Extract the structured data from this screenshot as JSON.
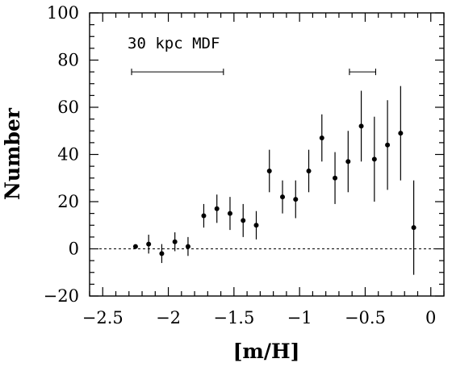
{
  "chart_data": {
    "type": "scatter",
    "xlabel": "[m/H]",
    "ylabel": "Number",
    "xlim": [
      -2.6,
      0.1
    ],
    "ylim": [
      -20,
      100
    ],
    "grid": false,
    "x_ticks": [
      -2.5,
      -2,
      -1.5,
      -1,
      -0.5,
      0
    ],
    "x_tick_labels": [
      "−2.5",
      "−2",
      "−1.5",
      "−1",
      "−0.5",
      "0"
    ],
    "y_ticks": [
      -20,
      0,
      20,
      40,
      60,
      80,
      100
    ],
    "y_tick_labels": [
      "−20",
      "0",
      "20",
      "40",
      "60",
      "80",
      "100"
    ],
    "reference_line": {
      "y": 0,
      "style": "dashed"
    },
    "annotation": "30 kpc MDF",
    "series": [
      {
        "marker": "filled-circle",
        "points": [
          {
            "x": -2.25,
            "y": 1,
            "err": 0
          },
          {
            "x": -2.15,
            "y": 2,
            "err": 4
          },
          {
            "x": -2.05,
            "y": -2,
            "err": 4
          },
          {
            "x": -1.95,
            "y": 3,
            "err": 4
          },
          {
            "x": -1.85,
            "y": 1,
            "err": 4
          },
          {
            "x": -1.73,
            "y": 14,
            "err": 5
          },
          {
            "x": -1.63,
            "y": 17,
            "err": 6
          },
          {
            "x": -1.53,
            "y": 15,
            "err": 7
          },
          {
            "x": -1.43,
            "y": 12,
            "err": 7
          },
          {
            "x": -1.33,
            "y": 10,
            "err": 6
          },
          {
            "x": -1.23,
            "y": 33,
            "err": 9
          },
          {
            "x": -1.13,
            "y": 22,
            "err": 7
          },
          {
            "x": -1.03,
            "y": 21,
            "err": 8
          },
          {
            "x": -0.93,
            "y": 33,
            "err": 9
          },
          {
            "x": -0.83,
            "y": 47,
            "err": 10
          },
          {
            "x": -0.73,
            "y": 30,
            "err": 11
          },
          {
            "x": -0.63,
            "y": 37,
            "err": 13
          },
          {
            "x": -0.53,
            "y": 52,
            "err": 15
          },
          {
            "x": -0.43,
            "y": 38,
            "err": 18
          },
          {
            "x": -0.33,
            "y": 44,
            "err": 19
          },
          {
            "x": -0.23,
            "y": 49,
            "err": 20
          },
          {
            "x": -0.13,
            "y": 9,
            "err": 20
          }
        ]
      }
    ],
    "resolution_bars": [
      {
        "x_from": -2.28,
        "x_to": -1.58,
        "y": 75
      },
      {
        "x_from": -0.62,
        "x_to": -0.42,
        "y": 75
      }
    ]
  }
}
